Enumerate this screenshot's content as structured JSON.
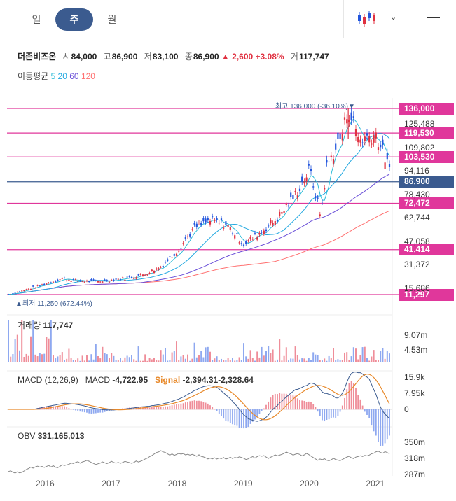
{
  "tabs": [
    {
      "label": "일"
    },
    {
      "label": "주"
    },
    {
      "label": "월"
    }
  ],
  "stock": {
    "name": "더존비즈온",
    "open_label": "시",
    "open": "84,000",
    "high_label": "고",
    "high": "86,900",
    "low_label": "저",
    "low": "83,100",
    "close_label": "종",
    "close": "86,900",
    "change_arrow": "▲",
    "change": "2,600",
    "change_pct": "+3.08%",
    "volume_label": "거",
    "volume": "117,747"
  },
  "ma": {
    "label": "이동평균",
    "periods": [
      "5",
      "20",
      "60",
      "120"
    ],
    "colors": [
      "#2bbbd8",
      "#22a8e0",
      "#6a4fd8",
      "#ff7070"
    ]
  },
  "colors": {
    "up": "#e03040",
    "down": "#2255dd",
    "level": "#e0379b",
    "current": "#3b5b8f"
  },
  "annotations": {
    "high": "최고 136,000 (-36.10%)▼",
    "low": "▲최저 11,250 (672.44%)"
  },
  "price_levels": [
    {
      "label": "136,000",
      "value": 136000
    },
    {
      "label": "119,530",
      "value": 119530
    },
    {
      "label": "103,530",
      "value": 103530
    },
    {
      "label": "86,900",
      "value": 86900,
      "current": true
    },
    {
      "label": "72,472",
      "value": 72472
    },
    {
      "label": "41,414",
      "value": 41414
    },
    {
      "label": "11,297",
      "value": 11297
    }
  ],
  "price_ticks": [
    {
      "label": "125,488",
      "value": 125488
    },
    {
      "label": "109,802",
      "value": 109802
    },
    {
      "label": "94,116",
      "value": 94116
    },
    {
      "label": "78,430",
      "value": 78430
    },
    {
      "label": "62,744",
      "value": 62744
    },
    {
      "label": "47,058",
      "value": 47058
    },
    {
      "label": "31,372",
      "value": 31372
    },
    {
      "label": "15,686",
      "value": 15686
    }
  ],
  "volume": {
    "title": "거래량",
    "value": "117,747",
    "ticks": [
      {
        "label": "9.07m",
        "value": 9.07
      },
      {
        "label": "4.53m",
        "value": 4.53
      }
    ]
  },
  "macd": {
    "title": "MACD (12,26,9)",
    "macd_label": "MACD",
    "macd_value": "-4,722.95",
    "signal_label": "Signal",
    "signal_value": "-2,394.31",
    "hist_value": "-2,328.64",
    "ticks": [
      {
        "label": "15.9k",
        "value": 15.9
      },
      {
        "label": "7.95k",
        "value": 7.95
      },
      {
        "label": "0",
        "value": 0
      }
    ]
  },
  "obv": {
    "title": "OBV",
    "value": "331,165,013",
    "ticks": [
      {
        "label": "350m",
        "value": 350
      },
      {
        "label": "318m",
        "value": 318
      },
      {
        "label": "287m",
        "value": 287
      }
    ]
  },
  "x_ticks": [
    "2016",
    "2017",
    "2018",
    "2019",
    "2020",
    "2021"
  ],
  "chart_data": {
    "type": "line",
    "title": "더존비즈온",
    "x": [
      "2015-06",
      "2015-09",
      "2016-01",
      "2016-04",
      "2016-07",
      "2016-10",
      "2017-01",
      "2017-04",
      "2017-07",
      "2017-10",
      "2018-01",
      "2018-04",
      "2018-07",
      "2018-10",
      "2019-01",
      "2019-04",
      "2019-07",
      "2019-10",
      "2020-01",
      "2020-03",
      "2020-04",
      "2020-07",
      "2020-08",
      "2020-10",
      "2021-01",
      "2021-03",
      "2021-04"
    ],
    "series": [
      {
        "name": "종",
        "values": [
          11250,
          14000,
          18500,
          22000,
          20500,
          20000,
          21000,
          22500,
          25000,
          30000,
          41000,
          56000,
          61000,
          58000,
          45000,
          53000,
          62000,
          76000,
          95000,
          64000,
          96000,
          120000,
          136000,
          115000,
          119000,
          100000,
          86900
        ]
      }
    ],
    "ylim": [
      11250,
      136000
    ],
    "xlabel": "",
    "ylabel": ""
  }
}
